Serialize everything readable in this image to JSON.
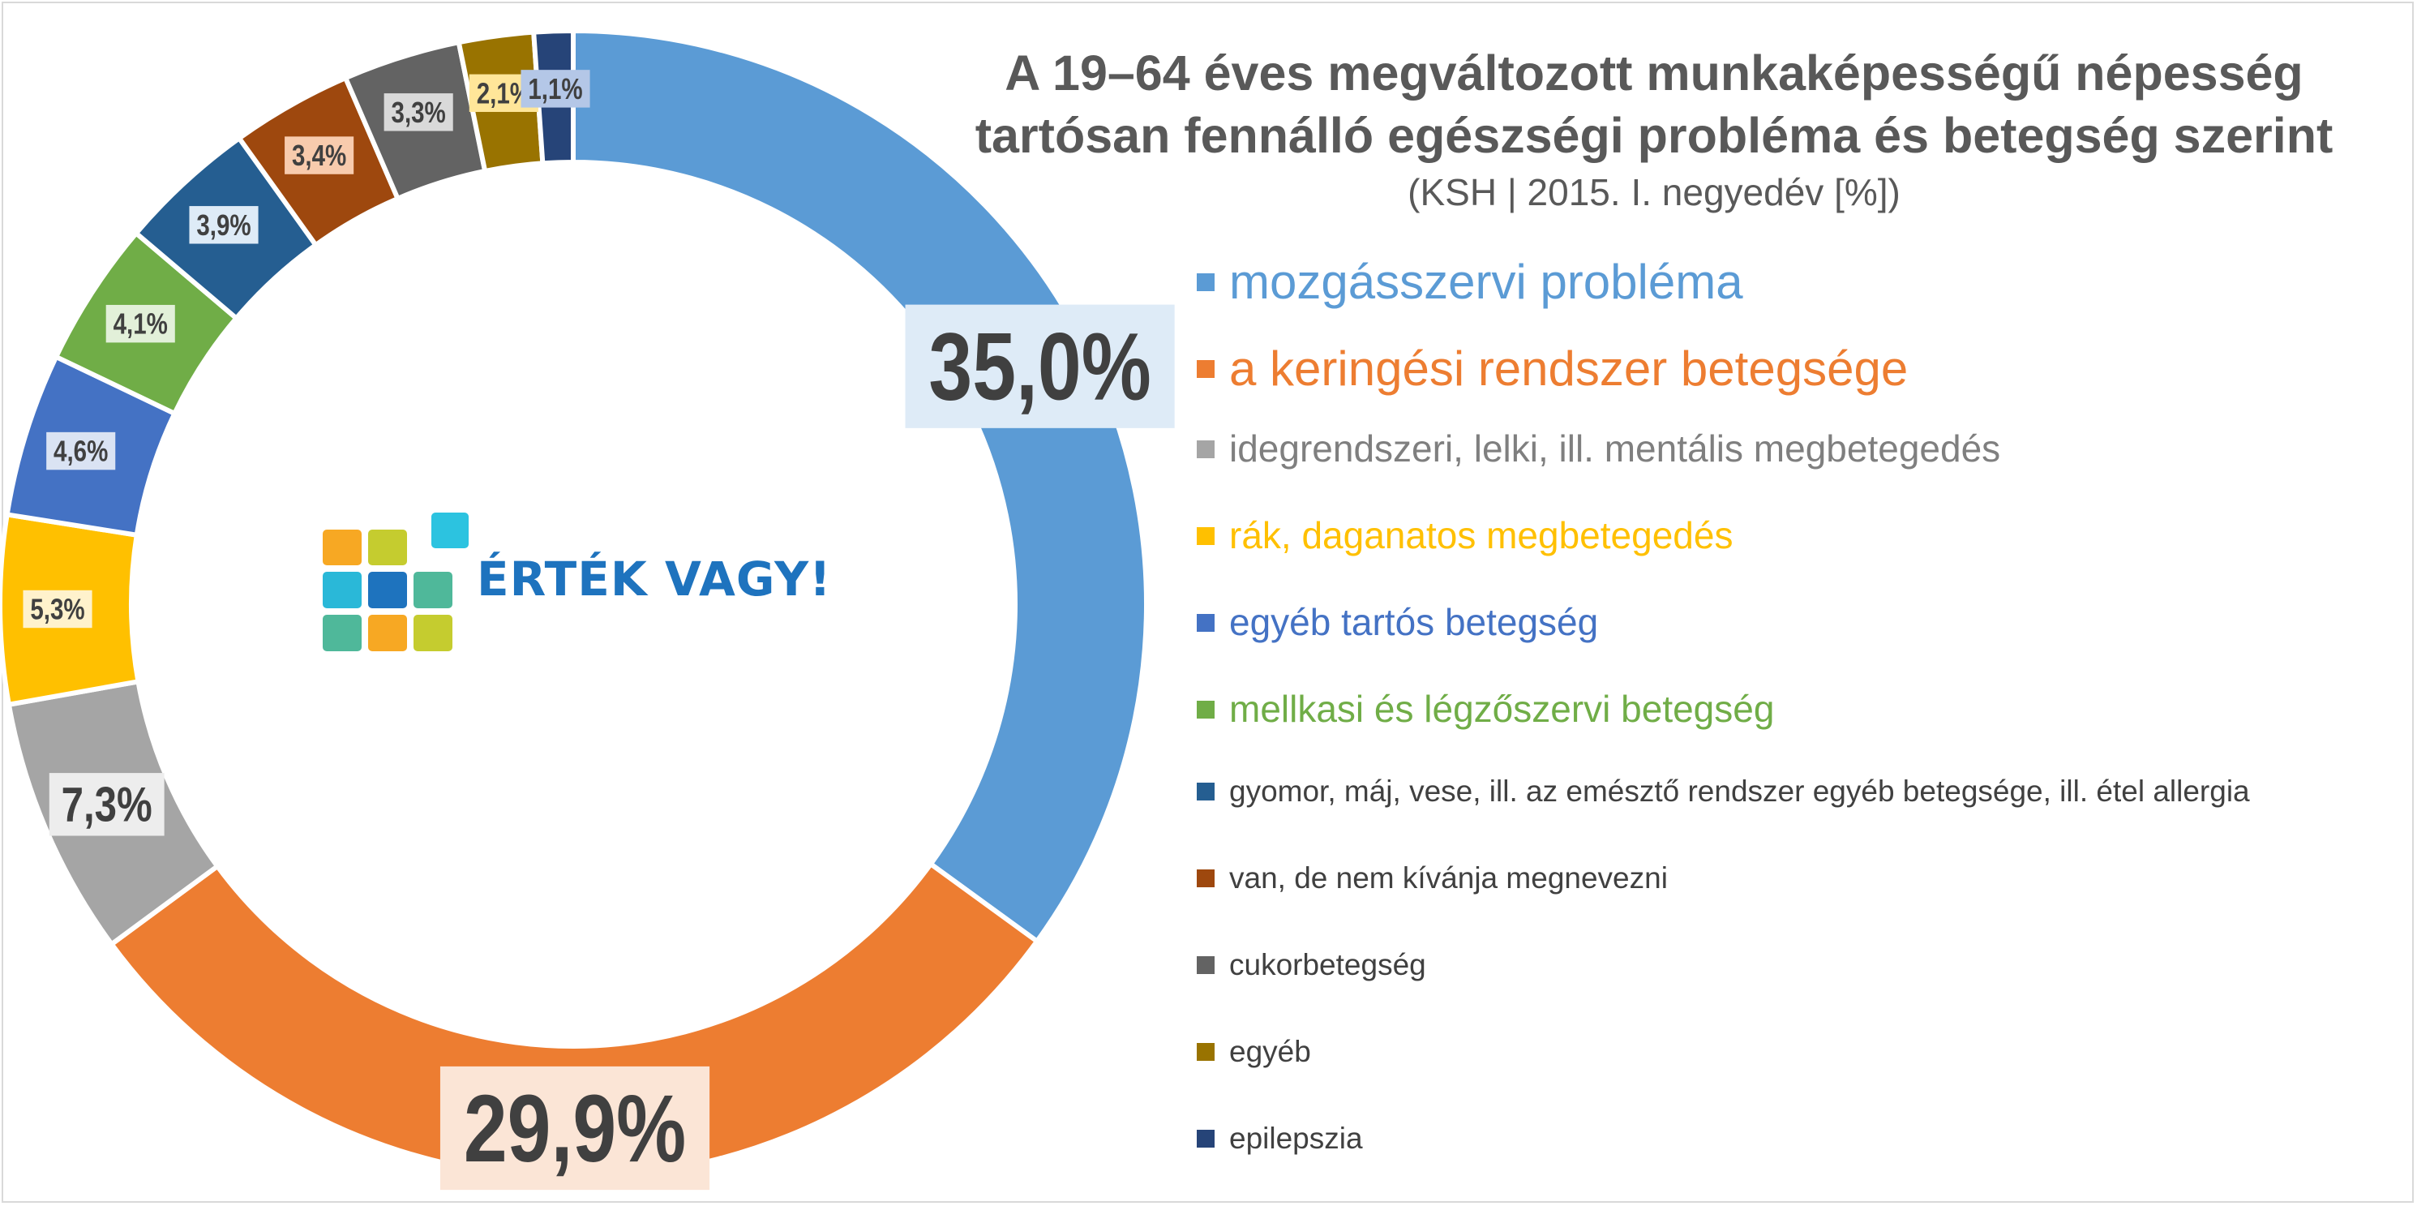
{
  "title_line1": "A 19–64 éves megváltozott munkaképességű népesség",
  "title_line2": "tartósan fennálló egészségi probléma és betegség szerint",
  "subtitle": "(KSH | 2015. I. negyedév [%])",
  "logo_text": "ÉRTÉK VAGY!",
  "logo_colors": [
    "#f7a823",
    "#c5cc2f",
    "#2cc3e0",
    "#2ab8d8",
    "#1e73be",
    "#4fb89a",
    "#4fb89a",
    "#f7a823",
    "#c5cc2f"
  ],
  "chart_data": {
    "type": "pie",
    "donut": true,
    "legend_position": "right",
    "series": [
      {
        "name": "mozgásszervi probléma",
        "value": 35.0,
        "label": "35,0%",
        "color": "#5b9bd5",
        "label_bg": "#deebf7"
      },
      {
        "name": "a keringési rendszer betegsége",
        "value": 29.9,
        "label": "29,9%",
        "color": "#ed7d31",
        "label_bg": "#fbe5d6"
      },
      {
        "name": "idegrendszeri, lelki, ill. mentális megbetegedés",
        "value": 7.3,
        "label": "7,3%",
        "color": "#a5a5a5",
        "label_bg": "#ededed"
      },
      {
        "name": "rák, daganatos megbetegedés",
        "value": 5.3,
        "label": "5,3%",
        "color": "#ffc000",
        "label_bg": "#fff2cc"
      },
      {
        "name": "egyéb tartós betegség",
        "value": 4.6,
        "label": "4,6%",
        "color": "#4472c4",
        "label_bg": "#dae3f3"
      },
      {
        "name": "mellkasi és légzőszervi betegség",
        "value": 4.1,
        "label": "4,1%",
        "color": "#70ad47",
        "label_bg": "#e2f0d9"
      },
      {
        "name": "gyomor, máj, vese, ill. az emésztő rendszer egyéb betegsége, ill. étel allergia",
        "value": 3.9,
        "label": "3,9%",
        "color": "#255e91",
        "label_bg": "#deebf7"
      },
      {
        "name": "van, de nem kívánja megnevezni",
        "value": 3.4,
        "label": "3,4%",
        "color": "#9e480e",
        "label_bg": "#f8cbad"
      },
      {
        "name": "cukorbetegség",
        "value": 3.3,
        "label": "3,3%",
        "color": "#636363",
        "label_bg": "#d9d9d9"
      },
      {
        "name": "egyéb",
        "value": 2.1,
        "label": "2,1%",
        "color": "#997300",
        "label_bg": "#ffe699"
      },
      {
        "name": "epilepszia",
        "value": 1.1,
        "label": "1,1%",
        "color": "#264478",
        "label_bg": "#b4c7e7"
      }
    ]
  }
}
